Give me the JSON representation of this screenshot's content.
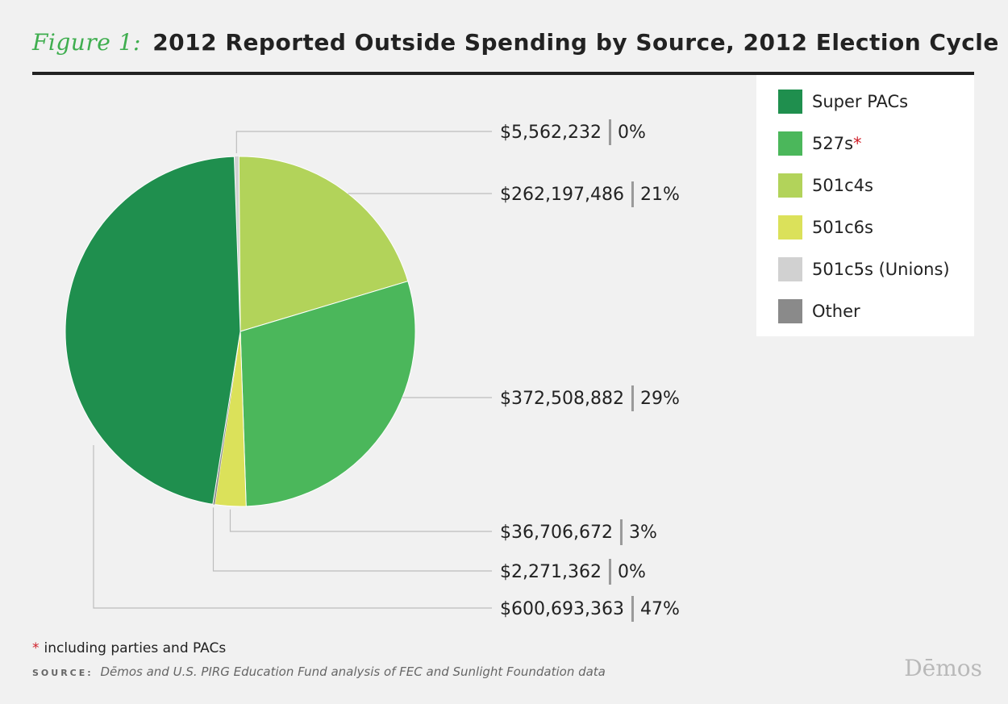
{
  "title": {
    "figure_label": "Figure 1:",
    "text": "2012 Reported Outside Spending by Source, 2012 Election Cycle"
  },
  "colors": {
    "figure_label": "#3fae4f",
    "rule": "#222222",
    "asterisk": "#d0202a",
    "leader_line": "#bdbdbd",
    "separator": "#9a9a9a"
  },
  "legend": {
    "items": [
      {
        "label": "Super PACs",
        "color": "#1f8f4e"
      },
      {
        "label": "527s",
        "color": "#4bb75b",
        "asterisk": "*"
      },
      {
        "label": "501c4s",
        "color": "#b2d35a"
      },
      {
        "label": "501c6s",
        "color": "#dbe15a"
      },
      {
        "label": "501c5s (Unions)",
        "color": "#d1d1d1"
      },
      {
        "label": "Other",
        "color": "#8a8a8a"
      }
    ]
  },
  "chart_data": {
    "type": "pie",
    "title": "2012 Reported Outside Spending by Source, 2012 Election Cycle",
    "slices": [
      {
        "name": "501c5s (Unions)",
        "value": 5562232,
        "amount_label": "$5,562,232",
        "percent_label": "0%",
        "color": "#d1d1d1"
      },
      {
        "name": "501c4s",
        "value": 262197486,
        "amount_label": "$262,197,486",
        "percent_label": "21%",
        "color": "#b2d35a"
      },
      {
        "name": "527s",
        "value": 372508882,
        "amount_label": "$372,508,882",
        "percent_label": "29%",
        "color": "#4bb75b"
      },
      {
        "name": "501c6s",
        "value": 36706672,
        "amount_label": "$36,706,672",
        "percent_label": "3%",
        "color": "#dbe15a"
      },
      {
        "name": "Other",
        "value": 2271362,
        "amount_label": "$2,271,362",
        "percent_label": "0%",
        "color": "#8a8a8a"
      },
      {
        "name": "Super PACs",
        "value": 600693363,
        "amount_label": "$600,693,363",
        "percent_label": "47%",
        "color": "#1f8f4e"
      }
    ]
  },
  "footnote": {
    "asterisk": "*",
    "text": "including parties and PACs"
  },
  "source": {
    "label": "SOURCE:",
    "text": "Dēmos and U.S. PIRG Education Fund analysis of FEC and Sunlight Foundation data"
  },
  "brand": "Dēmos"
}
